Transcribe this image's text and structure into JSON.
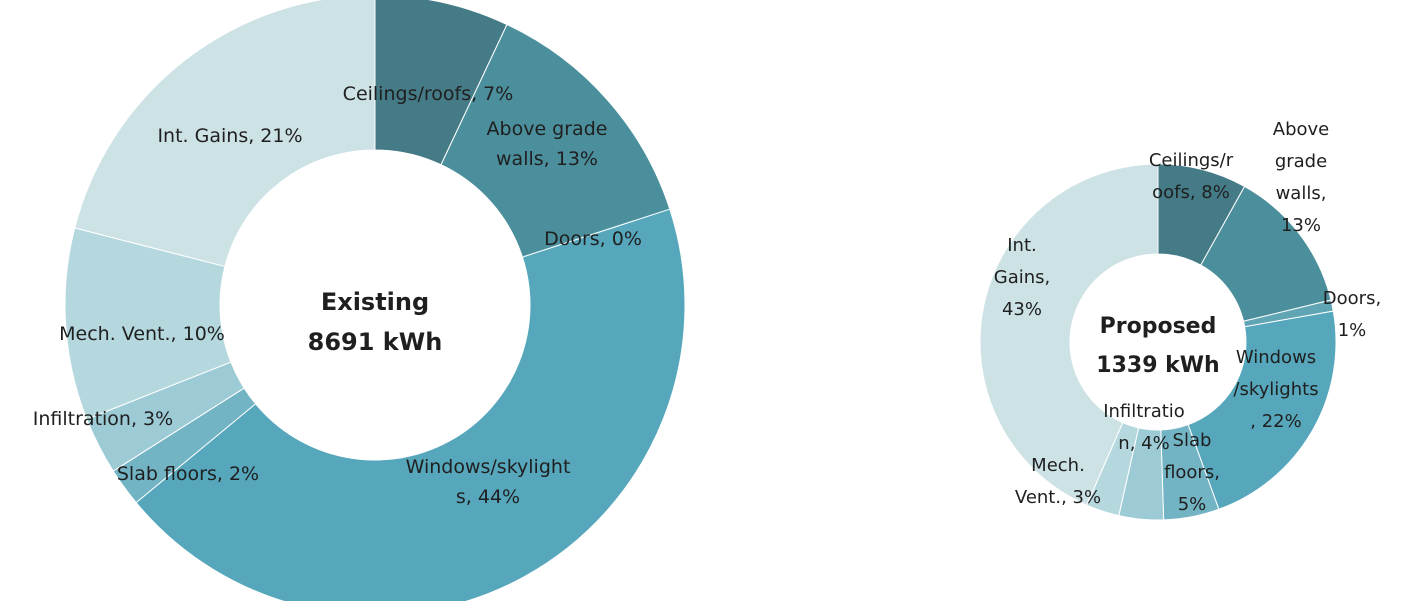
{
  "chart_data": [
    {
      "type": "pie",
      "variant": "donut",
      "center_title": "Existing",
      "center_value": "8691 kWh",
      "categories": [
        "Ceilings/roofs",
        "Above grade walls",
        "Doors",
        "Windows/skylights",
        "Slab floors",
        "Infiltration",
        "Mech. Vent.",
        "Int. Gains"
      ],
      "values": [
        7,
        13,
        0,
        44,
        2,
        3,
        10,
        21
      ],
      "labels": [
        "Ceilings/roofs, 7%",
        "Above grade walls, 13%",
        "Doors, 0%",
        "Windows/skylights, 44%",
        "Slab floors, 2%",
        "Infiltration, 3%",
        "Mech. Vent., 10%",
        "Int. Gains, 21%"
      ],
      "label_lines": [
        [
          "Ceilings/roofs, 7%"
        ],
        [
          "Above grade",
          "walls, 13%"
        ],
        [
          "Doors, 0%"
        ],
        [
          "Windows/skylight",
          "s, 44%"
        ],
        [
          "Slab floors, 2%"
        ],
        [
          "Infiltration, 3%"
        ],
        [
          "Mech. Vent., 10%"
        ],
        [
          "Int. Gains, 21%"
        ]
      ],
      "colors": [
        "#447b86",
        "#4b8f9c",
        "#60a6b8",
        "#56a7bb",
        "#72b4c4",
        "#9ccbd6",
        "#b5d8de",
        "#cde2e5"
      ]
    },
    {
      "type": "pie",
      "variant": "donut",
      "center_title": "Proposed",
      "center_value": "1339 kWh",
      "categories": [
        "Ceilings/roofs",
        "Above grade walls",
        "Doors",
        "Windows/skylights",
        "Slab floors",
        "Infiltration",
        "Mech. Vent.",
        "Int. Gains"
      ],
      "values": [
        8,
        13,
        1,
        22,
        5,
        4,
        3,
        43
      ],
      "labels": [
        "Ceilings/roofs, 8%",
        "Above grade walls, 13%",
        "Doors, 1%",
        "Windows/skylights, 22%",
        "Slab floors, 5%",
        "Infiltration, 4%",
        "Mech. Vent., 3%",
        "Int. Gains, 43%"
      ],
      "label_lines": [
        [
          "Ceilings/r",
          "oofs, 8%"
        ],
        [
          "Above",
          "grade",
          "walls,",
          "13%"
        ],
        [
          "Doors,",
          "1%"
        ],
        [
          "Windows",
          "/skylights",
          ", 22%"
        ],
        [
          "Slab",
          "floors,",
          "5%"
        ],
        [
          "Infiltratio",
          "n, 4%"
        ],
        [
          "Mech.",
          "Vent., 3%"
        ],
        [
          "Int.",
          "Gains,",
          "43%"
        ]
      ],
      "colors": [
        "#447b86",
        "#4b8f9c",
        "#5fa5b4",
        "#56a7bb",
        "#72b4c4",
        "#9ccbd6",
        "#b5d8de",
        "#cde2e5"
      ]
    }
  ]
}
